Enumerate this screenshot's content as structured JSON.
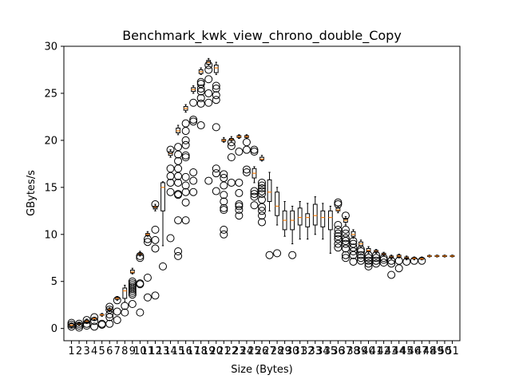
{
  "chart_data": {
    "type": "boxplot",
    "title": "Benchmark_kwk_view_chrono_double_Copy",
    "xlabel": "Size (Bytes)",
    "ylabel": "GBytes/s",
    "ylim": [
      -1.3,
      30
    ],
    "yticks": [
      0,
      5,
      10,
      15,
      20,
      25,
      30
    ],
    "categories": [
      "1",
      "2",
      "3",
      "4",
      "5",
      "6",
      "7",
      "8",
      "9",
      "10",
      "11",
      "12",
      "13",
      "14",
      "15",
      "16",
      "17",
      "18",
      "19",
      "20",
      "21",
      "22",
      "23",
      "24",
      "25",
      "26",
      "27",
      "28",
      "29",
      "30",
      "31",
      "32",
      "33",
      "34",
      "35",
      "36",
      "37",
      "38",
      "39",
      "40",
      "41",
      "42",
      "43",
      "44",
      "45",
      "46",
      "47",
      "48",
      "49",
      "50",
      "51"
    ],
    "boxes": [
      {
        "whislo": 0.1,
        "q1": 0.2,
        "med": 0.35,
        "q3": 0.5,
        "whishi": 0.6,
        "fliers": [
          0.4,
          0.6,
          0.2
        ]
      },
      {
        "whislo": 0.3,
        "q1": 0.4,
        "med": 0.45,
        "q3": 0.55,
        "whishi": 0.6,
        "fliers": [
          0.1,
          0.3,
          0.5
        ]
      },
      {
        "whislo": 0.6,
        "q1": 0.7,
        "med": 0.8,
        "q3": 0.9,
        "whishi": 1.0,
        "fliers": [
          0.3,
          0.5,
          0.9
        ]
      },
      {
        "whislo": 0.9,
        "q1": 1.0,
        "med": 1.05,
        "q3": 1.15,
        "whishi": 1.2,
        "fliers": [
          0.2,
          0.8,
          1.2
        ]
      },
      {
        "whislo": 1.3,
        "q1": 1.4,
        "med": 1.45,
        "q3": 1.5,
        "whishi": 1.6,
        "fliers": [
          0.4,
          0.5
        ]
      },
      {
        "whislo": 1.8,
        "q1": 1.9,
        "med": 2.0,
        "q3": 2.1,
        "whishi": 2.2,
        "fliers": [
          0.5,
          1.2,
          1.5,
          2.0,
          2.3
        ]
      },
      {
        "whislo": 3.0,
        "q1": 3.1,
        "med": 3.2,
        "q3": 3.3,
        "whishi": 3.4,
        "fliers": [
          0.9,
          1.8,
          3.0
        ]
      },
      {
        "whislo": 2.8,
        "q1": 3.2,
        "med": 4.0,
        "q3": 4.3,
        "whishi": 4.6,
        "fliers": [
          1.7,
          2.4
        ]
      },
      {
        "whislo": 5.8,
        "q1": 5.9,
        "med": 6.0,
        "q3": 6.2,
        "whishi": 6.4,
        "fliers": [
          2.6,
          3.6,
          3.8,
          4.0,
          4.2,
          4.4,
          4.6,
          4.8,
          5.0
        ]
      },
      {
        "whislo": 7.7,
        "q1": 7.8,
        "med": 7.9,
        "q3": 8.0,
        "whishi": 8.2,
        "fliers": [
          1.7,
          4.7,
          4.8,
          7.5,
          7.7
        ]
      },
      {
        "whislo": 9.8,
        "q1": 9.9,
        "med": 10.0,
        "q3": 10.1,
        "whishi": 10.3,
        "fliers": [
          3.3,
          5.4,
          9.2,
          9.5
        ]
      },
      {
        "whislo": 12.5,
        "q1": 12.7,
        "med": 12.9,
        "q3": 13.0,
        "whishi": 13.2,
        "fliers": [
          3.5,
          8.5,
          9.4,
          10.5,
          13.2
        ]
      },
      {
        "whislo": 8.8,
        "q1": 12.5,
        "med": 15.0,
        "q3": 15.5,
        "whishi": 15.6,
        "fliers": [
          6.6
        ]
      },
      {
        "whislo": 18.2,
        "q1": 18.4,
        "med": 18.6,
        "q3": 18.8,
        "whishi": 19.0,
        "fliers": [
          9.6,
          14.5,
          15.5,
          16.2,
          17.0,
          19.0
        ]
      },
      {
        "whislo": 20.6,
        "q1": 20.8,
        "med": 21.0,
        "q3": 21.3,
        "whishi": 21.6,
        "fliers": [
          7.7,
          8.2,
          11.5,
          14.2,
          14.3,
          15.5,
          16.2,
          17.0,
          17.8,
          18.5,
          19.3
        ]
      },
      {
        "whislo": 23.0,
        "q1": 23.2,
        "med": 23.4,
        "q3": 23.6,
        "whishi": 23.8,
        "fliers": [
          11.5,
          13.4,
          14.5,
          15.2,
          16.1,
          18.2,
          18.4,
          19.5,
          20.0,
          21.0,
          21.8
        ]
      },
      {
        "whislo": 25.0,
        "q1": 25.2,
        "med": 25.4,
        "q3": 25.6,
        "whishi": 25.8,
        "fliers": [
          14.5,
          15.7,
          16.6,
          22.0,
          22.2,
          24.0
        ]
      },
      {
        "whislo": 27.0,
        "q1": 27.1,
        "med": 27.3,
        "q3": 27.5,
        "whishi": 27.7,
        "fliers": [
          21.6,
          23.9,
          24.5,
          25.2,
          25.5,
          26.0,
          26.2
        ]
      },
      {
        "whislo": 28.0,
        "q1": 28.1,
        "med": 28.3,
        "q3": 28.5,
        "whishi": 28.7,
        "fliers": [
          15.7,
          24.0,
          25.0,
          26.5,
          27.5,
          28.0
        ]
      },
      {
        "whislo": 27.0,
        "q1": 27.2,
        "med": 27.7,
        "q3": 28.0,
        "whishi": 28.3,
        "fliers": [
          14.6,
          16.5,
          17.0,
          21.4,
          24.3,
          24.8,
          25.5,
          25.8
        ]
      },
      {
        "whislo": 19.8,
        "q1": 19.9,
        "med": 20.0,
        "q3": 20.1,
        "whishi": 20.3,
        "fliers": [
          10.0,
          10.5,
          12.6,
          12.8,
          13.5,
          14.2,
          15.2,
          16.0,
          16.4
        ]
      },
      {
        "whislo": 19.9,
        "q1": 20.0,
        "med": 20.1,
        "q3": 20.2,
        "whishi": 20.4,
        "fliers": [
          15.5,
          18.2,
          19.4,
          19.8
        ]
      },
      {
        "whislo": 20.2,
        "q1": 20.3,
        "med": 20.4,
        "q3": 20.5,
        "whishi": 20.6,
        "fliers": [
          12.0,
          12.6,
          13.0,
          13.2,
          14.4,
          15.5,
          18.8
        ]
      },
      {
        "whislo": 20.2,
        "q1": 20.3,
        "med": 20.4,
        "q3": 20.5,
        "whishi": 20.6,
        "fliers": [
          16.6,
          16.9,
          19.0,
          19.8
        ]
      },
      {
        "whislo": 15.5,
        "q1": 16.0,
        "med": 16.5,
        "q3": 17.0,
        "whishi": 17.2,
        "fliers": [
          13.1,
          14.0,
          14.3,
          14.6,
          18.8,
          19.0
        ]
      },
      {
        "whislo": 17.8,
        "q1": 17.9,
        "med": 18.0,
        "q3": 18.2,
        "whishi": 18.4,
        "fliers": [
          11.3,
          12.0,
          12.5,
          12.9,
          13.7,
          14.3,
          14.6,
          14.9,
          15.2,
          15.5
        ]
      },
      {
        "whislo": 12.5,
        "q1": 13.5,
        "med": 14.5,
        "q3": 15.8,
        "whishi": 16.6,
        "fliers": [
          7.8
        ]
      },
      {
        "whislo": 11.0,
        "q1": 12.0,
        "med": 13.0,
        "q3": 14.5,
        "whishi": 15.0,
        "fliers": [
          8.0
        ]
      },
      {
        "whislo": 9.8,
        "q1": 10.5,
        "med": 11.5,
        "q3": 12.5,
        "whishi": 13.5,
        "fliers": []
      },
      {
        "whislo": 9.0,
        "q1": 10.5,
        "med": 11.5,
        "q3": 12.5,
        "whishi": 13.0,
        "fliers": [
          7.8
        ]
      },
      {
        "whislo": 9.5,
        "q1": 11.0,
        "med": 11.8,
        "q3": 12.8,
        "whishi": 13.5,
        "fliers": []
      },
      {
        "whislo": 9.5,
        "q1": 10.8,
        "med": 11.8,
        "q3": 12.2,
        "whishi": 13.3,
        "fliers": []
      },
      {
        "whislo": 10.0,
        "q1": 11.0,
        "med": 12.0,
        "q3": 13.2,
        "whishi": 14.0,
        "fliers": []
      },
      {
        "whislo": 9.5,
        "q1": 10.8,
        "med": 11.8,
        "q3": 12.5,
        "whishi": 13.3,
        "fliers": []
      },
      {
        "whislo": 8.0,
        "q1": 10.5,
        "med": 11.8,
        "q3": 12.5,
        "whishi": 13.0,
        "fliers": []
      },
      {
        "whislo": 12.3,
        "q1": 12.5,
        "med": 12.6,
        "q3": 12.8,
        "whishi": 13.0,
        "fliers": [
          8.6,
          9.0,
          9.5,
          9.8,
          10.1,
          10.5,
          11.0,
          13.2,
          13.4
        ]
      },
      {
        "whislo": 11.0,
        "q1": 11.3,
        "med": 11.5,
        "q3": 11.7,
        "whishi": 11.9,
        "fliers": [
          7.5,
          7.8,
          8.5,
          9.0,
          9.3,
          9.6,
          10.1,
          10.5,
          12.0
        ]
      },
      {
        "whislo": 9.6,
        "q1": 9.8,
        "med": 10.0,
        "q3": 10.3,
        "whishi": 10.5,
        "fliers": [
          7.1,
          7.8,
          8.2,
          8.6,
          9.0,
          9.3
        ]
      },
      {
        "whislo": 8.6,
        "q1": 8.8,
        "med": 9.0,
        "q3": 9.2,
        "whishi": 9.4,
        "fliers": [
          7.2,
          7.5,
          7.8,
          8.2,
          8.4
        ]
      },
      {
        "whislo": 8.0,
        "q1": 8.2,
        "med": 8.3,
        "q3": 8.5,
        "whishi": 8.7,
        "fliers": [
          6.6,
          6.9,
          7.2,
          7.5,
          7.8
        ]
      },
      {
        "whislo": 8.0,
        "q1": 8.1,
        "med": 8.2,
        "q3": 8.3,
        "whishi": 8.4,
        "fliers": [
          6.9,
          7.2,
          7.5,
          7.8
        ]
      },
      {
        "whislo": 7.7,
        "q1": 7.8,
        "med": 7.9,
        "q3": 8.0,
        "whishi": 8.1,
        "fliers": [
          7.0,
          7.3,
          7.5
        ]
      },
      {
        "whislo": 7.4,
        "q1": 7.5,
        "med": 7.6,
        "q3": 7.7,
        "whishi": 7.8,
        "fliers": [
          5.7,
          6.9,
          7.2
        ]
      },
      {
        "whislo": 7.5,
        "q1": 7.6,
        "med": 7.7,
        "q3": 7.8,
        "whishi": 7.9,
        "fliers": [
          6.4,
          7.2
        ]
      },
      {
        "whislo": 7.3,
        "q1": 7.4,
        "med": 7.5,
        "q3": 7.6,
        "whishi": 7.7,
        "fliers": [
          7.1
        ]
      },
      {
        "whislo": 7.3,
        "q1": 7.4,
        "med": 7.45,
        "q3": 7.5,
        "whishi": 7.6,
        "fliers": [
          7.2
        ]
      },
      {
        "whislo": 7.3,
        "q1": 7.35,
        "med": 7.4,
        "q3": 7.5,
        "whishi": 7.6,
        "fliers": [
          7.2
        ]
      },
      {
        "whislo": 7.6,
        "q1": 7.65,
        "med": 7.7,
        "q3": 7.75,
        "whishi": 7.8,
        "fliers": []
      },
      {
        "whislo": 7.6,
        "q1": 7.65,
        "med": 7.7,
        "q3": 7.75,
        "whishi": 7.8,
        "fliers": []
      },
      {
        "whislo": 7.6,
        "q1": 7.65,
        "med": 7.7,
        "q3": 7.75,
        "whishi": 7.8,
        "fliers": []
      },
      {
        "whislo": 7.6,
        "q1": 7.65,
        "med": 7.7,
        "q3": 7.75,
        "whishi": 7.8,
        "fliers": []
      }
    ],
    "grid": false,
    "legend": "none",
    "colors": {
      "box": "#000000",
      "median": "#ff7f0e",
      "background": "#ffffff"
    }
  }
}
